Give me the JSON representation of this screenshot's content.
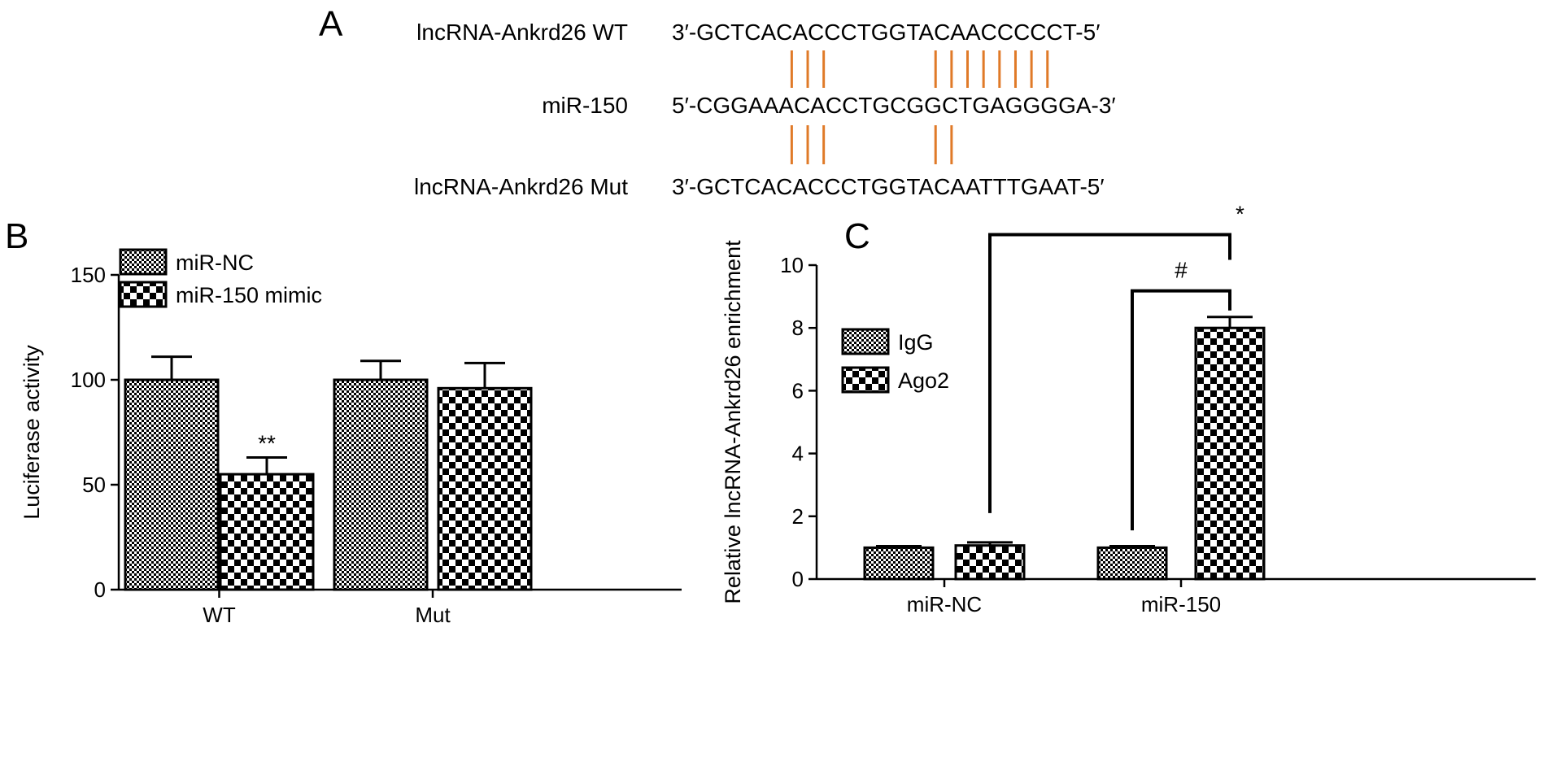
{
  "panels": {
    "A": "A",
    "B": "B",
    "C": "C"
  },
  "panelA": {
    "rows": [
      {
        "label": "lncRNA-Ankrd26 WT",
        "sequence": "3′-GCTCACACCCTGGTACAACCCCCT-5′"
      },
      {
        "label": "miR-150",
        "sequence": "5′-CGGAAACACCTGCGGCTGAGGGGA-3′"
      },
      {
        "label": "lncRNA-Ankrd26 Mut",
        "sequence": "3′-GCTCACACCCTGGTACAATTTGAAT-5′"
      }
    ],
    "pair_color": "#e07a28",
    "top_pairs": [
      7,
      8,
      9,
      16,
      17,
      18,
      19,
      20,
      21,
      22,
      23
    ],
    "bottom_pairs": [
      7,
      8,
      9,
      16,
      17
    ]
  },
  "chart_data": [
    {
      "type": "bar",
      "panel": "B",
      "categories": [
        "WT",
        "Mut"
      ],
      "series": [
        {
          "name": "miR-NC",
          "values": [
            100,
            100
          ],
          "errors": [
            11,
            9
          ],
          "pattern": "fine-checker"
        },
        {
          "name": "miR-150 mimic",
          "values": [
            55,
            96
          ],
          "errors": [
            8,
            12
          ],
          "pattern": "coarse-checker"
        }
      ],
      "annotations": [
        {
          "category": "WT",
          "series": 1,
          "text": "**"
        }
      ],
      "xlabel": "",
      "ylabel": "Luciferase activity",
      "ylim": [
        0,
        150
      ],
      "yticks": [
        0,
        50,
        100,
        150
      ],
      "legend": "top-left"
    },
    {
      "type": "bar",
      "panel": "C",
      "categories": [
        "miR-NC",
        "miR-150"
      ],
      "series": [
        {
          "name": "IgG",
          "values": [
            1.0,
            1.0
          ],
          "errors": [
            0.05,
            0.05
          ],
          "pattern": "fine-checker"
        },
        {
          "name": "Ago2",
          "values": [
            1.07,
            8.0
          ],
          "errors": [
            0.1,
            0.35
          ],
          "pattern": "coarse-checker"
        }
      ],
      "brackets": [
        {
          "from_category": "miR-NC",
          "from_series": 1,
          "to_category": "miR-150",
          "to_series": 1,
          "text": "*"
        },
        {
          "from_category": "miR-150",
          "from_series": 0,
          "to_category": "miR-150",
          "to_series": 1,
          "text": "#"
        }
      ],
      "xlabel": "",
      "ylabel": "Relative lncRNA-Ankrd26 enrichment",
      "ylim": [
        0,
        10
      ],
      "yticks": [
        0,
        2,
        4,
        6,
        8,
        10
      ],
      "legend": "top-left"
    }
  ]
}
